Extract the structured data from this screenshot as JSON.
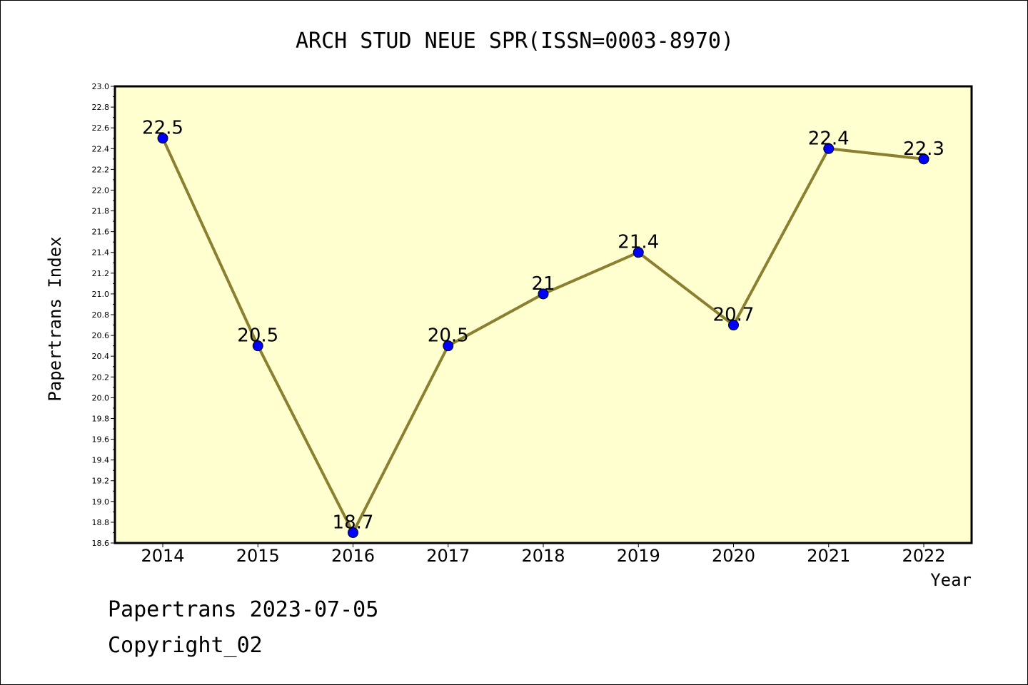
{
  "chart_data": {
    "type": "line",
    "title": "ARCH STUD NEUE SPR(ISSN=0003-8970)",
    "xlabel": "Year",
    "ylabel": "Papertrans Index",
    "categories": [
      "2014",
      "2015",
      "2016",
      "2017",
      "2018",
      "2019",
      "2020",
      "2021",
      "2022"
    ],
    "values": [
      22.5,
      20.5,
      18.7,
      20.5,
      21.0,
      21.4,
      20.7,
      22.4,
      22.3
    ],
    "data_labels": [
      "22.5",
      "20.5",
      "18.7",
      "20.5",
      "21",
      "21.4",
      "20.7",
      "22.4",
      "22.3"
    ],
    "ylim": [
      18.6,
      23.0
    ],
    "y_ticks": [
      "18.6",
      "18.8",
      "19.0",
      "19.2",
      "19.4",
      "19.6",
      "19.8",
      "20.0",
      "20.2",
      "20.4",
      "20.6",
      "20.8",
      "21.0",
      "21.2",
      "21.4",
      "21.6",
      "21.8",
      "22.0",
      "22.2",
      "22.4",
      "22.6",
      "22.8",
      "23.0"
    ],
    "grid": false,
    "colors": {
      "plot_background": "#ffffd0",
      "line": "#8b8030",
      "marker": "#0000ff"
    }
  },
  "footer": {
    "line1": "Papertrans 2023-07-05",
    "line2": "Copyright_02"
  }
}
